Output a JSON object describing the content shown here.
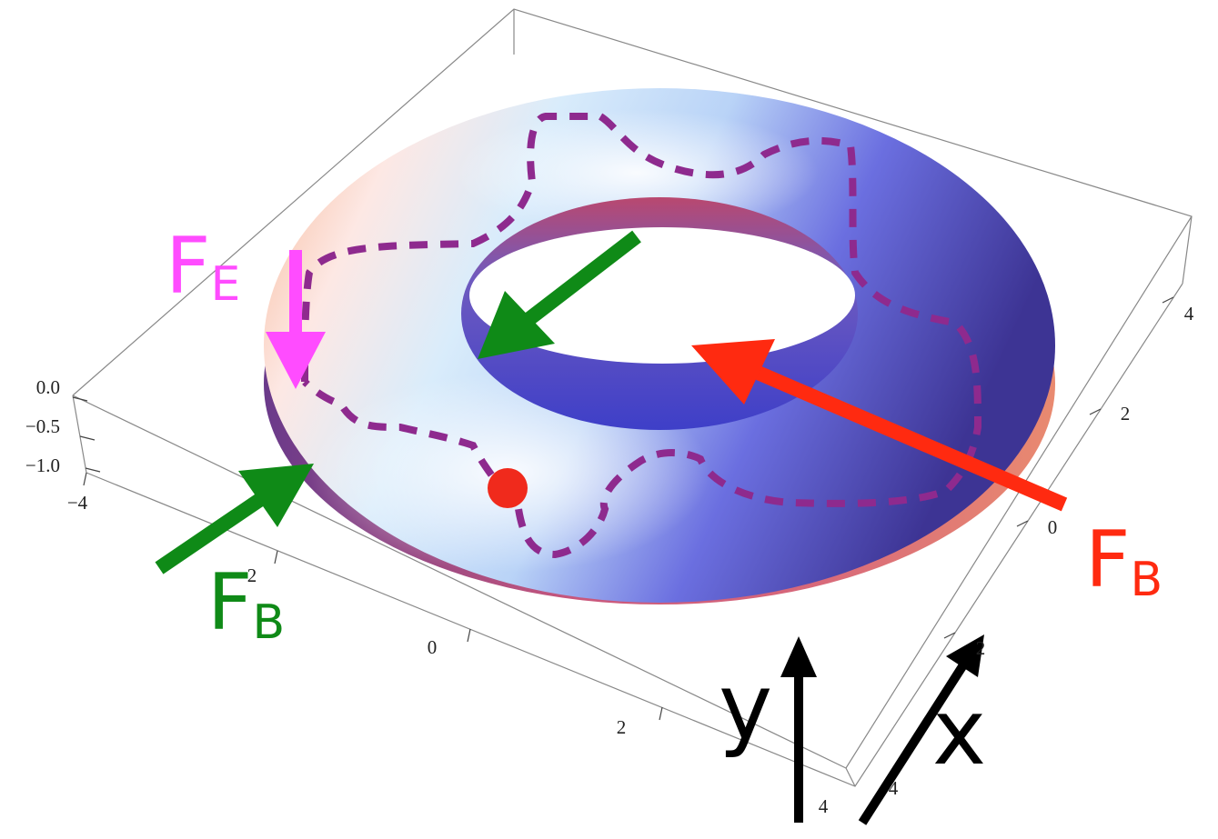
{
  "z_axis": {
    "tick_labels": [
      "0.0",
      "−0.5",
      "−1.0"
    ]
  },
  "front_axis": {
    "tick_labels": [
      "−4",
      "2",
      "0",
      "2",
      "4"
    ]
  },
  "side_axis": {
    "tick_labels": [
      "4",
      "2",
      "0",
      "2",
      "4"
    ]
  },
  "annotations": {
    "electric_force": {
      "symbol": "F",
      "subscript": "E"
    },
    "magnetic_force_left": {
      "symbol": "F",
      "subscript": "B"
    },
    "magnetic_force_right": {
      "symbol": "F",
      "subscript": "B"
    }
  },
  "direction_labels": {
    "y": "y",
    "x": "x"
  }
}
